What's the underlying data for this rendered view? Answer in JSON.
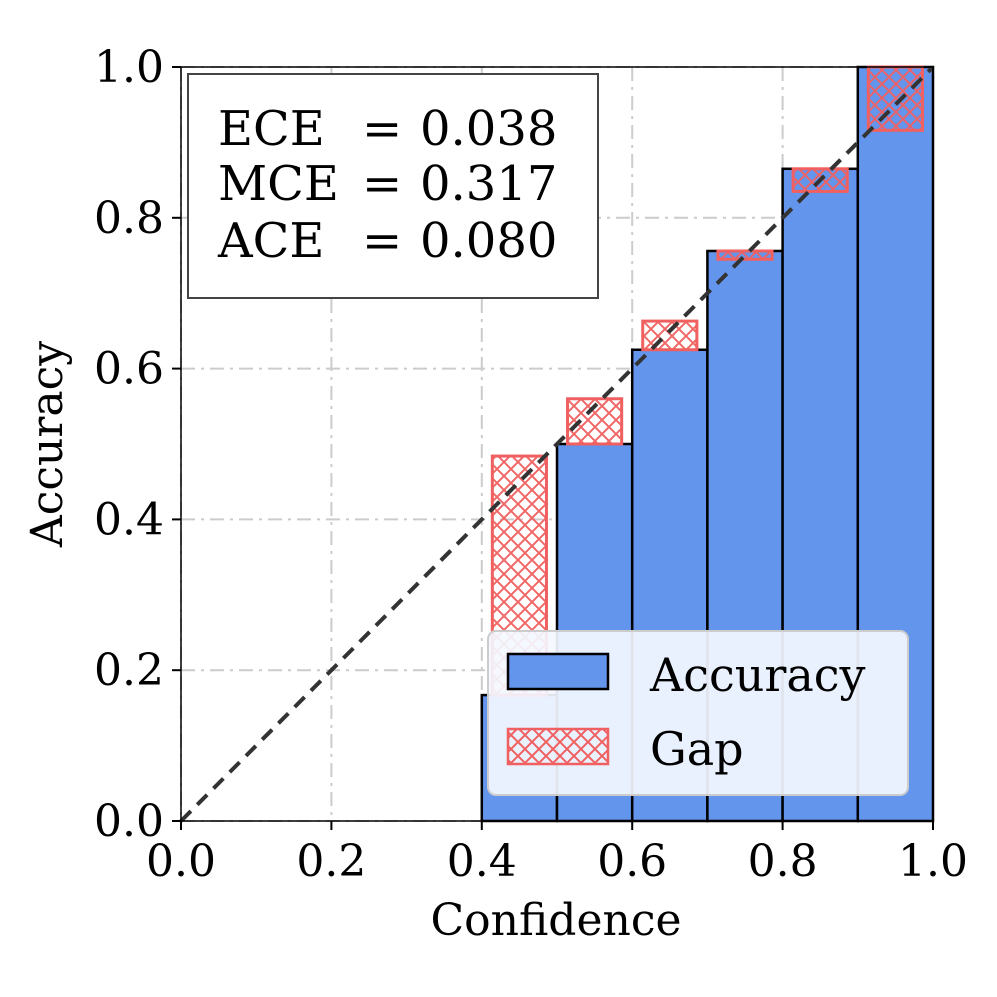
{
  "chart_data": {
    "type": "bar",
    "title": "",
    "xlabel": "Confidence",
    "ylabel": "Accuracy",
    "xlim": [
      0.0,
      1.0
    ],
    "ylim": [
      0.0,
      1.0
    ],
    "grid": true,
    "xticks": [
      "0.0",
      "0.2",
      "0.4",
      "0.6",
      "0.8",
      "1.0"
    ],
    "yticks": [
      "0.0",
      "0.2",
      "0.4",
      "0.6",
      "0.8",
      "1.0"
    ],
    "bins": [
      {
        "left": 0.4,
        "right": 0.5,
        "accuracy": 0.167,
        "confidence": 0.484
      },
      {
        "left": 0.5,
        "right": 0.6,
        "accuracy": 0.5,
        "confidence": 0.56
      },
      {
        "left": 0.6,
        "right": 0.7,
        "accuracy": 0.625,
        "confidence": 0.663
      },
      {
        "left": 0.7,
        "right": 0.8,
        "accuracy": 0.756,
        "confidence": 0.745
      },
      {
        "left": 0.8,
        "right": 0.9,
        "accuracy": 0.865,
        "confidence": 0.835
      },
      {
        "left": 0.9,
        "right": 1.0,
        "accuracy": 1.0,
        "confidence": 0.916
      }
    ],
    "legend": {
      "position": "lower-right",
      "entries": [
        {
          "label": "Accuracy",
          "color": "#6495ed"
        },
        {
          "label": "Gap",
          "color": "#f06060"
        }
      ]
    },
    "metrics": [
      {
        "name": "ECE ",
        "value": "0.038"
      },
      {
        "name": "MCE",
        "value": "0.317"
      },
      {
        "name": "ACE ",
        "value": "0.080"
      }
    ],
    "diagonal": "perfect calibration (dashed)"
  },
  "colors": {
    "bar_fill": "#6495ed",
    "gap_edge": "#f06060",
    "gap_fill": "#f0606022",
    "grid": "#cccccc",
    "diagonal": "#333333"
  }
}
